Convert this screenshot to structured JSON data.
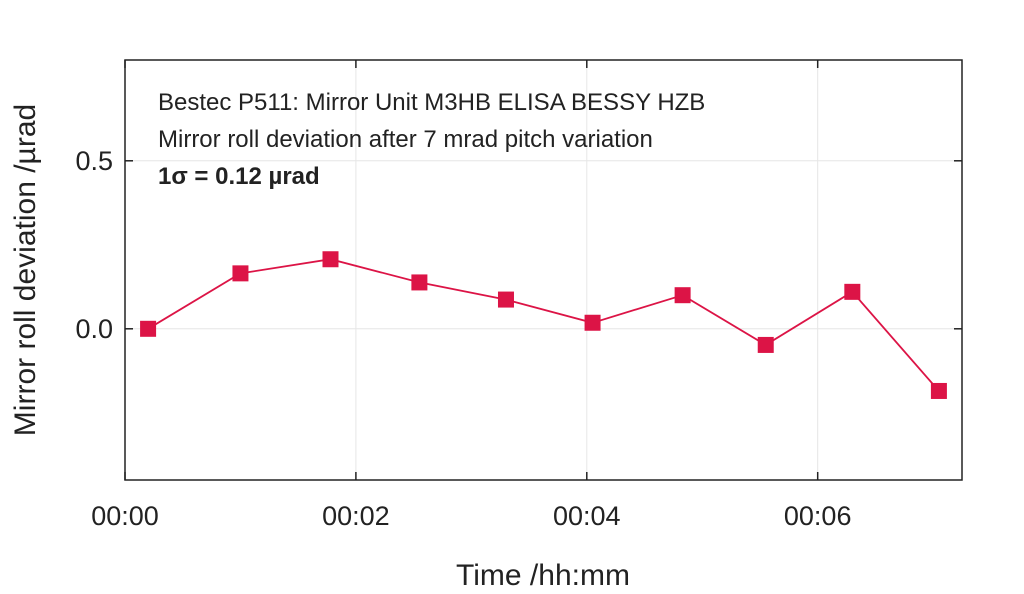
{
  "chart_data": {
    "type": "line",
    "xlabel": "Time /hh:mm",
    "ylabel": "Mirror roll deviation /µrad",
    "xlim_minutes": [
      0,
      7.25
    ],
    "ylim": [
      -0.45,
      0.8
    ],
    "x_ticks": [
      {
        "value": 0,
        "label": "00:00"
      },
      {
        "value": 2,
        "label": "00:02"
      },
      {
        "value": 4,
        "label": "00:04"
      },
      {
        "value": 6,
        "label": "00:06"
      }
    ],
    "y_ticks": [
      {
        "value": 0.5,
        "label": "0.5"
      },
      {
        "value": 0.0,
        "label": "0.0"
      }
    ],
    "grid": true,
    "series": [
      {
        "color": "#dc1446",
        "marker": "square",
        "x_minutes": [
          0.2,
          1.0,
          1.78,
          2.55,
          3.3,
          4.05,
          4.83,
          5.55,
          6.3,
          7.05
        ],
        "values": [
          0.0,
          0.165,
          0.207,
          0.138,
          0.087,
          0.018,
          0.1,
          -0.048,
          0.11,
          -0.185
        ]
      }
    ],
    "annotations": [
      {
        "text": "Bestec P511: Mirror Unit M3HB ELISA BESSY HZB",
        "bold": false
      },
      {
        "text": "Mirror roll deviation after 7 mrad pitch variation",
        "bold": false
      },
      {
        "text": "1σ = 0.12 µrad",
        "bold": true
      }
    ]
  }
}
